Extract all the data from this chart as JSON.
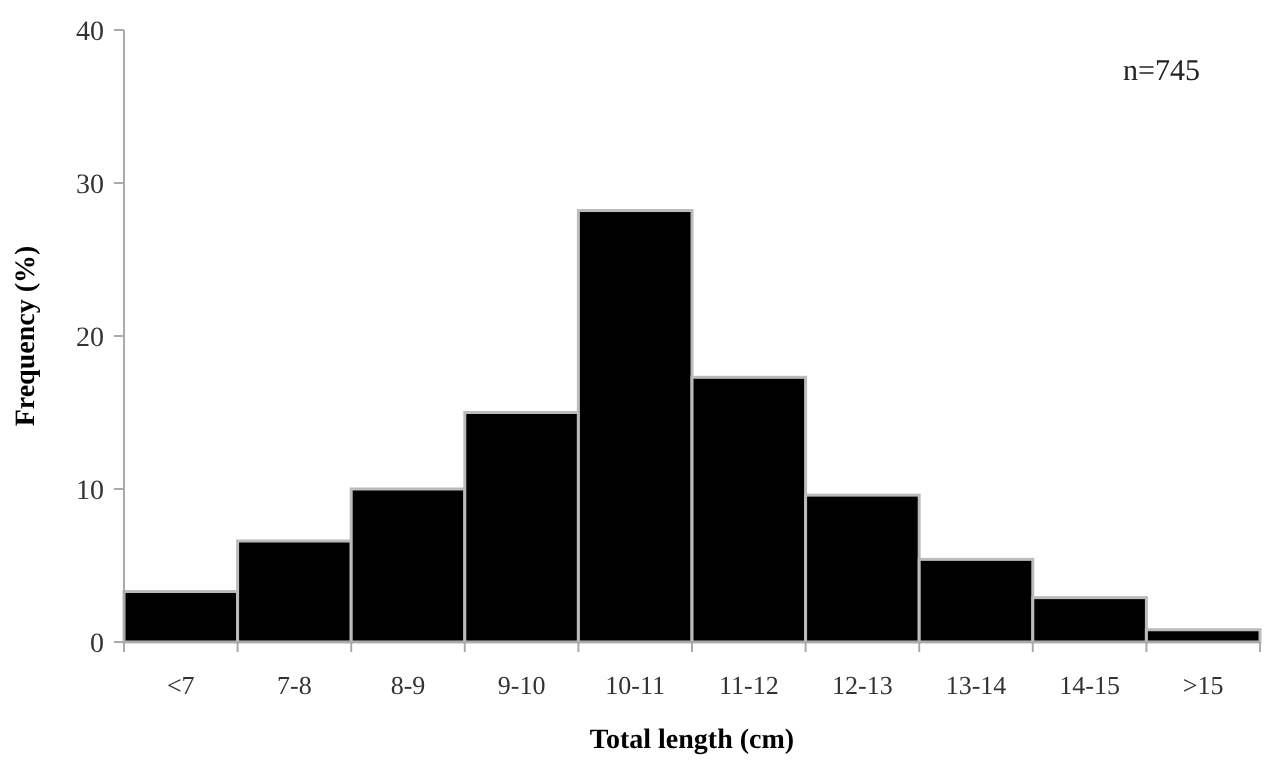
{
  "chart_data": {
    "type": "bar",
    "xlabel": "Total length (cm)",
    "ylabel": "Frequency (%)",
    "categories": [
      "<7",
      "7-8",
      "8-9",
      "9-10",
      "10-11",
      "11-12",
      "12-13",
      "13-14",
      "14-15",
      ">15"
    ],
    "values": [
      3.3,
      6.6,
      10.0,
      15.0,
      28.2,
      17.3,
      9.6,
      5.4,
      2.9,
      0.8
    ],
    "color": "#000000",
    "ylim": [
      0,
      40
    ],
    "yticks": [
      0,
      10,
      20,
      30,
      40
    ],
    "annotations": [
      "n=745"
    ]
  }
}
